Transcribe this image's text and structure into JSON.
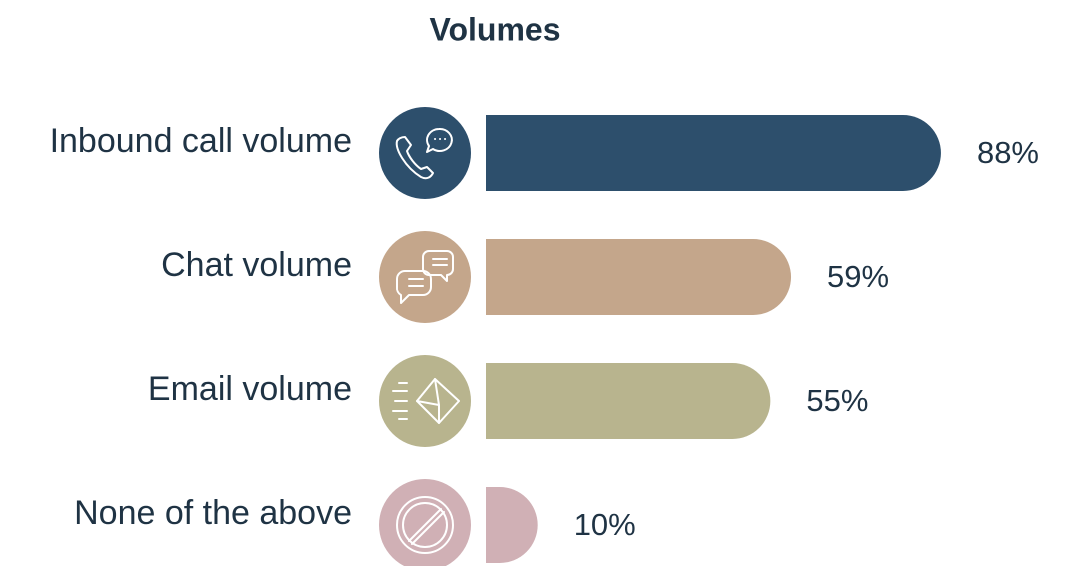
{
  "chart_data": {
    "type": "bar",
    "orientation": "horizontal",
    "title": "Volumes",
    "categories": [
      "Inbound call volume",
      "Chat volume",
      "Email volume",
      "None of the above"
    ],
    "values": [
      88,
      59,
      55,
      10
    ],
    "value_labels": [
      "88%",
      "59%",
      "55%",
      "10%"
    ],
    "colors": [
      "#2d4f6c",
      "#c4a68b",
      "#b8b48e",
      "#d0b0b5"
    ]
  }
}
